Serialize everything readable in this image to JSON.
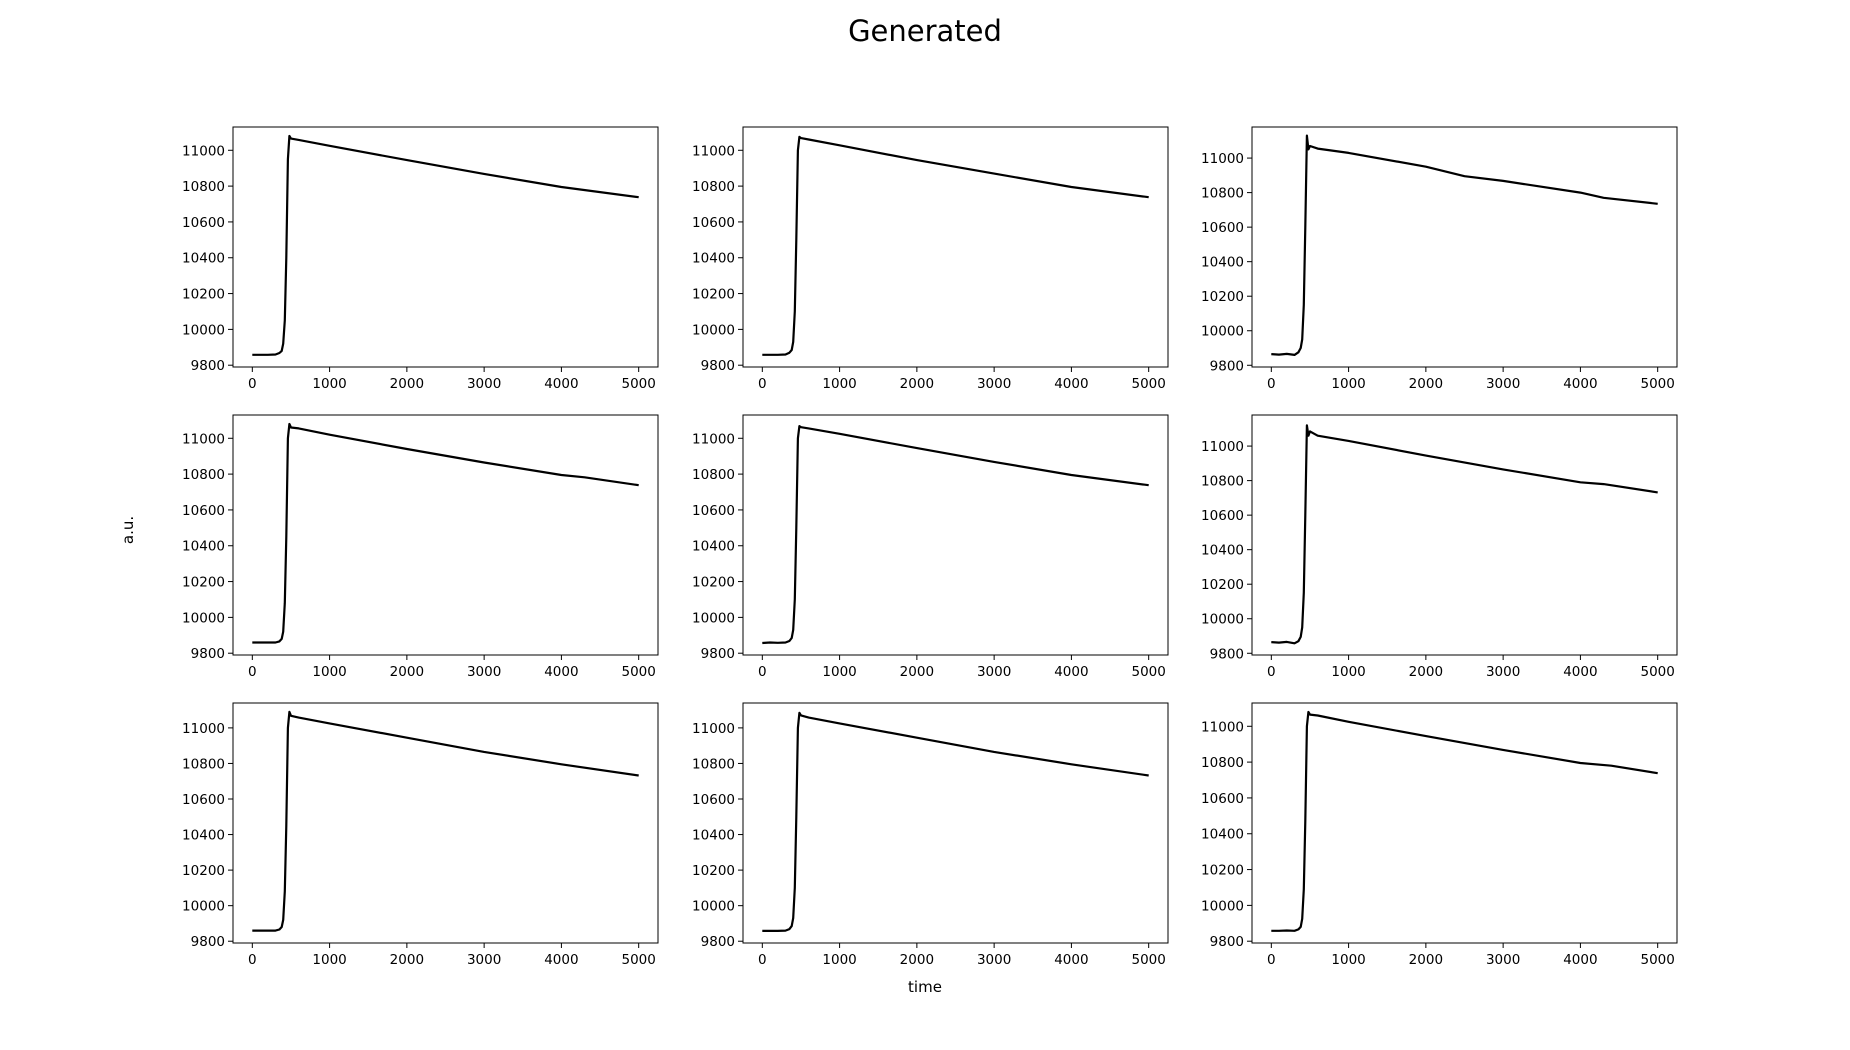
{
  "figure": {
    "title": "Generated",
    "xlabel": "time",
    "ylabel": "a.u."
  },
  "chart_data": [
    {
      "type": "line",
      "xlim": [
        -250,
        5250
      ],
      "ylim": [
        9790,
        11130
      ],
      "x_ticks": [
        0,
        1000,
        2000,
        3000,
        4000,
        5000
      ],
      "y_ticks": [
        9800,
        10000,
        10200,
        10400,
        10600,
        10800,
        11000
      ],
      "series": [
        {
          "color": "#000000",
          "x": [
            0,
            100,
            200,
            300,
            350,
            380,
            400,
            420,
            440,
            460,
            480,
            500,
            600,
            1000,
            2000,
            3000,
            4000,
            5000
          ],
          "values": [
            9858,
            9858,
            9858,
            9860,
            9868,
            9880,
            9920,
            10050,
            10400,
            10950,
            11080,
            11065,
            11058,
            11025,
            10945,
            10868,
            10795,
            10738
          ]
        }
      ]
    },
    {
      "type": "line",
      "xlim": [
        -250,
        5250
      ],
      "ylim": [
        9790,
        11130
      ],
      "x_ticks": [
        0,
        1000,
        2000,
        3000,
        4000,
        5000
      ],
      "y_ticks": [
        9800,
        10000,
        10200,
        10400,
        10600,
        10800,
        11000
      ],
      "series": [
        {
          "color": "#000000",
          "x": [
            0,
            100,
            200,
            300,
            350,
            380,
            400,
            420,
            440,
            460,
            480,
            500,
            600,
            1000,
            2000,
            3000,
            4000,
            5000
          ],
          "values": [
            9858,
            9858,
            9858,
            9860,
            9870,
            9885,
            9930,
            10100,
            10500,
            11000,
            11075,
            11068,
            11060,
            11028,
            10945,
            10870,
            10795,
            10738
          ]
        }
      ]
    },
    {
      "type": "line",
      "xlim": [
        -250,
        5250
      ],
      "ylim": [
        9790,
        11180
      ],
      "x_ticks": [
        0,
        1000,
        2000,
        3000,
        4000,
        5000
      ],
      "y_ticks": [
        9800,
        10000,
        10200,
        10400,
        10600,
        10800,
        11000
      ],
      "series": [
        {
          "color": "#000000",
          "x": [
            0,
            100,
            200,
            300,
            350,
            380,
            400,
            420,
            440,
            460,
            480,
            500,
            600,
            1000,
            2000,
            2500,
            3000,
            4000,
            4300,
            5000
          ],
          "values": [
            9865,
            9862,
            9866,
            9860,
            9875,
            9900,
            9950,
            10150,
            10600,
            11130,
            11050,
            11070,
            11055,
            11030,
            10950,
            10895,
            10868,
            10800,
            10770,
            10735
          ]
        }
      ]
    },
    {
      "type": "line",
      "xlim": [
        -250,
        5250
      ],
      "ylim": [
        9790,
        11130
      ],
      "x_ticks": [
        0,
        1000,
        2000,
        3000,
        4000,
        5000
      ],
      "y_ticks": [
        9800,
        10000,
        10200,
        10400,
        10600,
        10800,
        11000
      ],
      "series": [
        {
          "color": "#000000",
          "x": [
            0,
            100,
            200,
            300,
            350,
            380,
            400,
            420,
            440,
            460,
            480,
            500,
            600,
            1000,
            2000,
            3000,
            4000,
            4300,
            5000
          ],
          "values": [
            9860,
            9860,
            9860,
            9860,
            9866,
            9880,
            9920,
            10080,
            10450,
            11000,
            11080,
            11060,
            11055,
            11020,
            10940,
            10865,
            10795,
            10782,
            10738
          ]
        }
      ]
    },
    {
      "type": "line",
      "xlim": [
        -250,
        5250
      ],
      "ylim": [
        9790,
        11130
      ],
      "x_ticks": [
        0,
        1000,
        2000,
        3000,
        4000,
        5000
      ],
      "y_ticks": [
        9800,
        10000,
        10200,
        10400,
        10600,
        10800,
        11000
      ],
      "series": [
        {
          "color": "#000000",
          "x": [
            0,
            100,
            200,
            300,
            350,
            380,
            400,
            420,
            440,
            460,
            480,
            500,
            600,
            1000,
            2000,
            3000,
            4000,
            5000
          ],
          "values": [
            9857,
            9860,
            9858,
            9860,
            9868,
            9885,
            9930,
            10100,
            10500,
            11000,
            11068,
            11062,
            11055,
            11025,
            10945,
            10868,
            10795,
            10738
          ]
        }
      ]
    },
    {
      "type": "line",
      "xlim": [
        -250,
        5250
      ],
      "ylim": [
        9790,
        11180
      ],
      "x_ticks": [
        0,
        1000,
        2000,
        3000,
        4000,
        5000
      ],
      "y_ticks": [
        9800,
        10000,
        10200,
        10400,
        10600,
        10800,
        11000
      ],
      "series": [
        {
          "color": "#000000",
          "x": [
            0,
            100,
            200,
            300,
            350,
            380,
            400,
            420,
            440,
            460,
            480,
            500,
            600,
            1000,
            2000,
            3000,
            4000,
            4300,
            5000
          ],
          "values": [
            9865,
            9862,
            9866,
            9858,
            9870,
            9895,
            9950,
            10150,
            10600,
            11120,
            11060,
            11085,
            11060,
            11030,
            10945,
            10865,
            10790,
            10780,
            10732
          ]
        }
      ]
    },
    {
      "type": "line",
      "xlim": [
        -250,
        5250
      ],
      "ylim": [
        9790,
        11140
      ],
      "x_ticks": [
        0,
        1000,
        2000,
        3000,
        4000,
        5000
      ],
      "y_ticks": [
        9800,
        10000,
        10200,
        10400,
        10600,
        10800,
        11000
      ],
      "series": [
        {
          "color": "#000000",
          "x": [
            0,
            100,
            200,
            300,
            350,
            380,
            400,
            420,
            440,
            460,
            480,
            500,
            600,
            1000,
            2000,
            3000,
            4000,
            5000
          ],
          "values": [
            9860,
            9860,
            9860,
            9860,
            9866,
            9880,
            9920,
            10080,
            10450,
            11000,
            11090,
            11068,
            11058,
            11025,
            10945,
            10865,
            10795,
            10732
          ]
        }
      ]
    },
    {
      "type": "line",
      "xlim": [
        -250,
        5250
      ],
      "ylim": [
        9790,
        11140
      ],
      "x_ticks": [
        0,
        1000,
        2000,
        3000,
        4000,
        5000
      ],
      "y_ticks": [
        9800,
        10000,
        10200,
        10400,
        10600,
        10800,
        11000
      ],
      "series": [
        {
          "color": "#000000",
          "x": [
            0,
            100,
            200,
            300,
            350,
            380,
            400,
            420,
            440,
            460,
            480,
            500,
            600,
            1000,
            2000,
            3000,
            4000,
            5000
          ],
          "values": [
            9858,
            9858,
            9858,
            9860,
            9868,
            9885,
            9930,
            10100,
            10500,
            11000,
            11085,
            11070,
            11058,
            11025,
            10945,
            10865,
            10795,
            10732
          ]
        }
      ]
    },
    {
      "type": "line",
      "xlim": [
        -250,
        5250
      ],
      "ylim": [
        9790,
        11130
      ],
      "x_ticks": [
        0,
        1000,
        2000,
        3000,
        4000,
        5000
      ],
      "y_ticks": [
        9800,
        10000,
        10200,
        10400,
        10600,
        10800,
        11000
      ],
      "series": [
        {
          "color": "#000000",
          "x": [
            0,
            100,
            200,
            300,
            350,
            380,
            400,
            420,
            440,
            460,
            480,
            500,
            600,
            1000,
            2000,
            3000,
            4000,
            4400,
            5000
          ],
          "values": [
            9858,
            9858,
            9860,
            9858,
            9866,
            9880,
            9925,
            10090,
            10470,
            11000,
            11080,
            11065,
            11060,
            11025,
            10945,
            10868,
            10795,
            10780,
            10738
          ]
        }
      ]
    }
  ]
}
